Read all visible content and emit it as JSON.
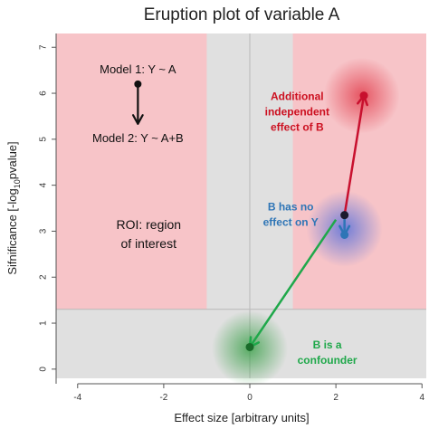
{
  "chart_data": {
    "type": "scatter",
    "title": "Eruption plot of variable A",
    "xlabel": "Effect size [arbitrary units]",
    "ylabel_parts": [
      "Sifnificance [-log",
      "10",
      "pvalue]"
    ],
    "xlim": [
      -4.5,
      4.1
    ],
    "ylim": [
      -0.2,
      7.3
    ],
    "xticks": [
      -4,
      -2,
      0,
      2,
      4
    ],
    "yticks": [
      0,
      1,
      2,
      3,
      4,
      5,
      6,
      7
    ],
    "grid": false,
    "background_color": "#e0e0e0",
    "roi": {
      "color": "#f7c4c8",
      "y_threshold": 1.3,
      "x_exclusion": [
        -1,
        1
      ],
      "label_lines": [
        "ROI: region",
        "of interest"
      ]
    },
    "guide_lines": {
      "x": 0,
      "y": 1.3,
      "color": "#b8b8b8"
    },
    "points": [
      {
        "name": "Model 1 point",
        "x": 2.2,
        "y": 3.35,
        "color": "#1a1a2e"
      },
      {
        "name": "Independent effect",
        "x": 2.65,
        "y": 5.95,
        "color": "#c8102e"
      },
      {
        "name": "No effect",
        "x": 2.2,
        "y": 2.92,
        "color": "#2e75b6"
      },
      {
        "name": "Confounder",
        "x": 0,
        "y": 0.48,
        "color": "#1a6b2a"
      }
    ],
    "arrows": [
      {
        "from": [
          2.2,
          3.35
        ],
        "to": [
          2.65,
          5.95
        ],
        "color": "#c8102e"
      },
      {
        "from": [
          2.2,
          3.35
        ],
        "to": [
          2.2,
          2.92
        ],
        "color": "#2e75b6"
      },
      {
        "from": [
          2.0,
          3.25
        ],
        "to": [
          0,
          0.48
        ],
        "color": "#1fa84a"
      }
    ],
    "glows": [
      {
        "x": 2.6,
        "y": 5.95,
        "color": "#e03040"
      },
      {
        "x": 2.2,
        "y": 3.05,
        "color": "#4466dd"
      },
      {
        "x": 0,
        "y": 0.45,
        "color": "#2a9a3a"
      }
    ],
    "legend": {
      "model1": "Model 1: Y ~ A",
      "model2": "Model 2: Y ~ A+B",
      "dot_x": -2.6,
      "dot_y": 6.2
    },
    "annotations": [
      {
        "lines": [
          "Additional",
          "independent",
          "effect of B"
        ],
        "x": 1.1,
        "y": 5.85,
        "color": "#cc1020"
      },
      {
        "lines": [
          "B has no",
          "effect on Y"
        ],
        "x": 0.95,
        "y": 3.45,
        "color": "#2e75b6"
      },
      {
        "lines": [
          "B is a",
          "confounder"
        ],
        "x": 1.8,
        "y": 0.45,
        "color": "#1fa84a"
      }
    ]
  }
}
